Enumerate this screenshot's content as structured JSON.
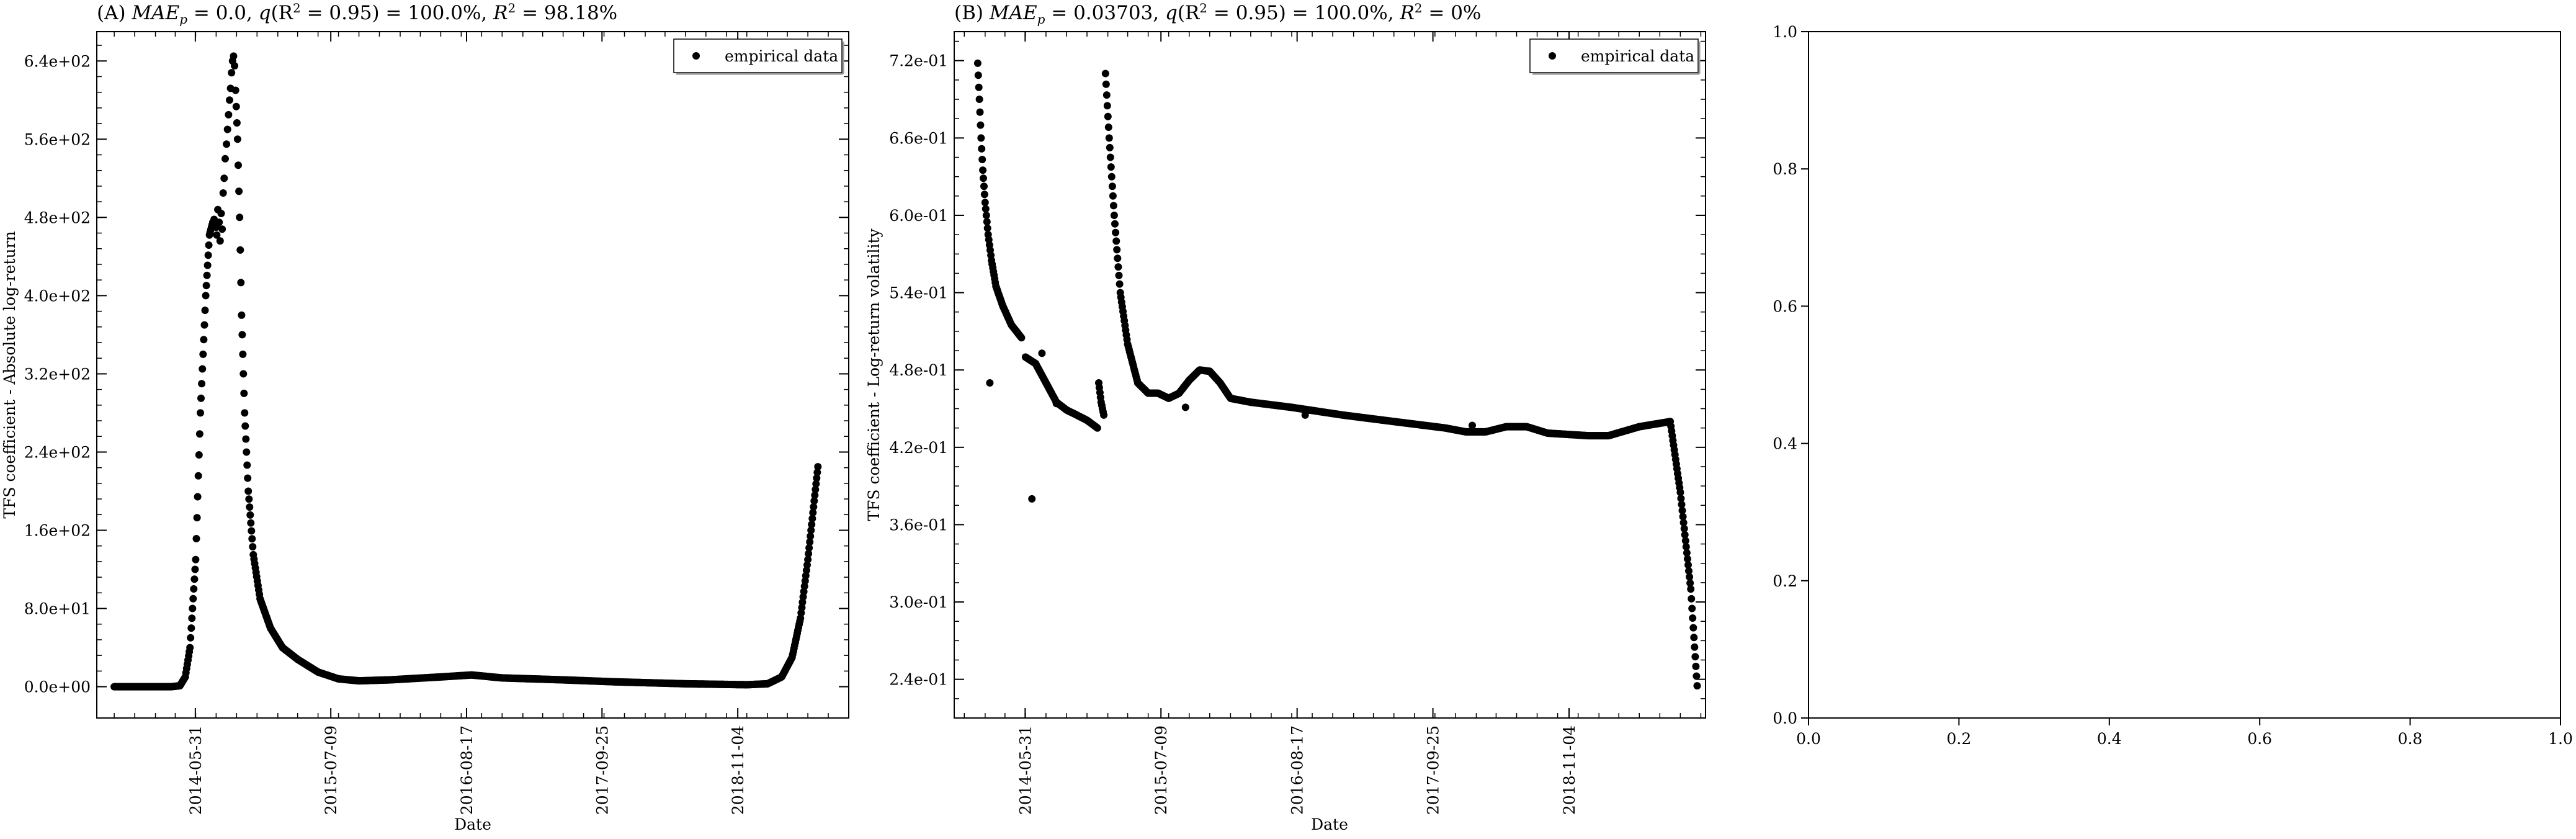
{
  "chart_data": [
    {
      "panel_label": "(A)",
      "type": "scatter",
      "title": "(A) MAE_p = 0.0, q(R² = 0.95) = 100.0%, R² = 98.18%",
      "title_parts": {
        "prefix": "(A) ",
        "mae": "MAE",
        "mae_sub": "p",
        "mae_val": " = 0.0, ",
        "q": "q",
        "q_rest": "(R",
        "sup": "2",
        "q_val": " = 0.95) = 100.0%, ",
        "r": "R",
        "r_sup": "2",
        "r_val": " = 98.18%"
      },
      "xlabel": "Date",
      "ylabel": "TFS coefficient - Absolute log-return",
      "legend": {
        "label": "empirical data",
        "position": "upper right"
      },
      "x_ticks": [
        "2014-05-31",
        "2015-07-09",
        "2016-08-17",
        "2017-09-25",
        "2018-11-04"
      ],
      "y_ticks": [
        "0.0e+00",
        "8.0e+01",
        "1.6e+02",
        "2.4e+02",
        "3.2e+02",
        "4.0e+02",
        "4.8e+02",
        "5.6e+02",
        "6.4e+02"
      ],
      "xlim": [
        "2013-08-10",
        "2019-10-01"
      ],
      "ylim": [
        -32,
        670
      ],
      "curve": [
        [
          "2013-10-01",
          0
        ],
        [
          "2014-03-20",
          0
        ],
        [
          "2014-04-15",
          1
        ],
        [
          "2014-05-01",
          10
        ],
        [
          "2014-05-15",
          40
        ],
        [
          "2014-06-01",
          130
        ],
        [
          "2014-06-15",
          280
        ],
        [
          "2014-07-01",
          400
        ],
        [
          "2014-07-12",
          462
        ],
        [
          "2014-07-22",
          475
        ]
      ],
      "scatter_cluster": [
        [
          "2014-07-26",
          478
        ],
        [
          "2014-08-01",
          470
        ],
        [
          "2014-08-03",
          462
        ],
        [
          "2014-08-06",
          488
        ],
        [
          "2014-08-10",
          475
        ],
        [
          "2014-08-13",
          456
        ],
        [
          "2014-08-16",
          484
        ],
        [
          "2014-08-19",
          468
        ],
        [
          "2014-08-22",
          505
        ],
        [
          "2014-08-25",
          520
        ],
        [
          "2014-08-28",
          540
        ],
        [
          "2014-09-01",
          555
        ],
        [
          "2014-09-04",
          570
        ],
        [
          "2014-09-07",
          585
        ],
        [
          "2014-09-10",
          600
        ],
        [
          "2014-09-13",
          612
        ],
        [
          "2014-09-16",
          628
        ],
        [
          "2014-09-19",
          640
        ],
        [
          "2014-09-22",
          645
        ],
        [
          "2014-09-25",
          635
        ]
      ],
      "curve_decay": [
        [
          "2014-09-28",
          610
        ],
        [
          "2014-10-04",
          560
        ],
        [
          "2014-10-10",
          480
        ],
        [
          "2014-10-16",
          380
        ],
        [
          "2014-10-25",
          280
        ],
        [
          "2014-11-05",
          200
        ],
        [
          "2014-11-20",
          135
        ],
        [
          "2014-12-10",
          90
        ],
        [
          "2015-01-10",
          60
        ],
        [
          "2015-02-15",
          40
        ],
        [
          "2015-04-01",
          28
        ],
        [
          "2015-06-01",
          15
        ],
        [
          "2015-08-01",
          8
        ],
        [
          "2015-10-01",
          6
        ],
        [
          "2016-01-01",
          7
        ],
        [
          "2016-06-01",
          10
        ],
        [
          "2016-09-01",
          12
        ],
        [
          "2016-12-01",
          9
        ],
        [
          "2017-06-01",
          7
        ],
        [
          "2017-11-01",
          5
        ],
        [
          "2018-06-01",
          3
        ],
        [
          "2018-12-01",
          2
        ],
        [
          "2019-02-01",
          3
        ],
        [
          "2019-03-15",
          10
        ],
        [
          "2019-04-15",
          30
        ],
        [
          "2019-05-10",
          70
        ],
        [
          "2019-06-01",
          130
        ],
        [
          "2019-06-20",
          190
        ],
        [
          "2019-07-01",
          225
        ]
      ]
    },
    {
      "panel_label": "(B)",
      "type": "scatter",
      "title": "(B) MAE_p = 0.03703, q(R² = 0.95) = 100.0%, R² = 0%",
      "title_parts": {
        "prefix": "(B) ",
        "mae": "MAE",
        "mae_sub": "p",
        "mae_val": " = 0.03703, ",
        "q": "q",
        "q_rest": "(R",
        "sup": "2",
        "q_val": " = 0.95) = 100.0%, ",
        "r": "R",
        "r_sup": "2",
        "r_val": " = 0%"
      },
      "xlabel": "Date",
      "ylabel": "TFS coefficient - Log-return volatility",
      "legend": {
        "label": "empirical data",
        "position": "upper right"
      },
      "x_ticks": [
        "2014-05-31",
        "2015-07-09",
        "2016-08-17",
        "2017-09-25",
        "2018-11-04"
      ],
      "y_ticks": [
        "2.4e-01",
        "3.0e-01",
        "3.6e-01",
        "4.2e-01",
        "4.8e-01",
        "5.4e-01",
        "6.0e-01",
        "6.6e-01",
        "7.2e-01"
      ],
      "xlim": [
        "2013-11-01",
        "2019-12-15"
      ],
      "ylim": [
        0.21,
        0.7425
      ],
      "segment1": [
        [
          "2014-01-10",
          0.718
        ],
        [
          "2014-01-15",
          0.69
        ],
        [
          "2014-01-20",
          0.66
        ],
        [
          "2014-01-25",
          0.635
        ],
        [
          "2014-02-01",
          0.61
        ],
        [
          "2014-02-10",
          0.585
        ],
        [
          "2014-02-20",
          0.565
        ],
        [
          "2014-03-05",
          0.545
        ],
        [
          "2014-03-25",
          0.53
        ],
        [
          "2014-04-20",
          0.515
        ],
        [
          "2014-05-20",
          0.505
        ]
      ],
      "segment2": [
        [
          "2014-06-01",
          0.49
        ],
        [
          "2014-07-01",
          0.485
        ],
        [
          "2014-08-01",
          0.47
        ],
        [
          "2014-09-01",
          0.455
        ],
        [
          "2014-10-01",
          0.449
        ],
        [
          "2014-11-01",
          0.445
        ],
        [
          "2014-12-01",
          0.441
        ],
        [
          "2015-01-01",
          0.435
        ]
      ],
      "segment3": [
        [
          "2015-01-05",
          0.47
        ],
        [
          "2015-01-12",
          0.455
        ],
        [
          "2015-01-20",
          0.445
        ]
      ],
      "segment4": [
        [
          "2015-01-25",
          0.71
        ],
        [
          "2015-02-05",
          0.66
        ],
        [
          "2015-02-20",
          0.6
        ],
        [
          "2015-03-10",
          0.54
        ],
        [
          "2015-04-01",
          0.5
        ],
        [
          "2015-05-01",
          0.47
        ],
        [
          "2015-06-01",
          0.462
        ],
        [
          "2015-07-01",
          0.462
        ],
        [
          "2015-08-01",
          0.458
        ],
        [
          "2015-09-01",
          0.462
        ],
        [
          "2015-10-01",
          0.472
        ],
        [
          "2015-11-01",
          0.48
        ],
        [
          "2015-12-01",
          0.479
        ],
        [
          "2016-01-01",
          0.47
        ],
        [
          "2016-02-01",
          0.458
        ],
        [
          "2016-04-01",
          0.455
        ],
        [
          "2016-08-01",
          0.451
        ],
        [
          "2017-01-01",
          0.445
        ],
        [
          "2017-06-01",
          0.44
        ],
        [
          "2017-11-01",
          0.435
        ],
        [
          "2018-01-01",
          0.432
        ],
        [
          "2018-03-01",
          0.432
        ],
        [
          "2018-05-01",
          0.436
        ],
        [
          "2018-07-01",
          0.436
        ],
        [
          "2018-09-01",
          0.431
        ],
        [
          "2019-01-01",
          0.429
        ],
        [
          "2019-03-01",
          0.429
        ],
        [
          "2019-06-01",
          0.436
        ],
        [
          "2019-09-01",
          0.44
        ],
        [
          "2019-10-01",
          0.385
        ],
        [
          "2019-11-01",
          0.31
        ],
        [
          "2019-11-20",
          0.235
        ]
      ],
      "outliers": [
        [
          "2014-02-15",
          0.47
        ],
        [
          "2014-06-20",
          0.38
        ],
        [
          "2014-07-20",
          0.493
        ],
        [
          "2014-09-01",
          0.454
        ],
        [
          "2015-09-20",
          0.451
        ],
        [
          "2016-09-10",
          0.445
        ],
        [
          "2018-01-20",
          0.437
        ]
      ]
    },
    {
      "panel_label": "(C)",
      "type": "scatter",
      "title": "",
      "xlim": [
        0.0,
        1.0
      ],
      "ylim": [
        0.0,
        1.0
      ],
      "x_ticks": [
        "0.0",
        "0.2",
        "0.4",
        "0.6",
        "0.8",
        "1.0"
      ],
      "y_ticks": [
        "0.0",
        "0.2",
        "0.4",
        "0.6",
        "0.8",
        "1.0"
      ],
      "empty": true
    }
  ]
}
